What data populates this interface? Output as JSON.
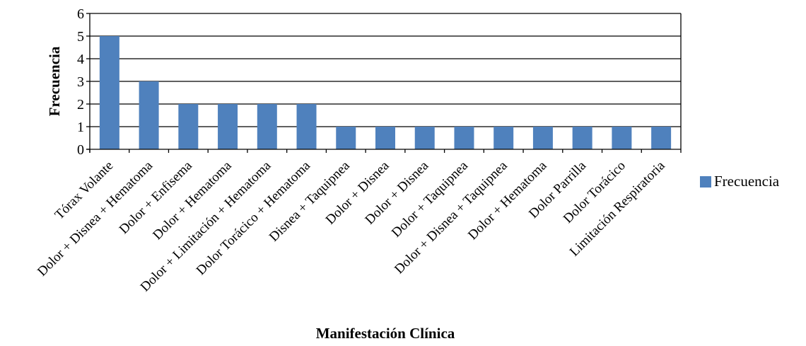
{
  "chart_data": {
    "type": "bar",
    "categories": [
      "Tórax Volante",
      "Dolor + Disnea + Hematoma",
      "Dolor + Enfisema",
      "Dolor + Hematoma",
      "Dolor + Limitación + Hematoma",
      "Dolor Torácico + Hematoma",
      "Disnea + Taquipnea",
      "Dolor + Disnea",
      "Dolor + Disnea",
      "Dolor + Taquipnea",
      "Dolor + Disnea + Taquipnea",
      "Dolor + Hematoma",
      "Dolor Parrilla",
      "Dolor Torácico",
      "Limitación Respiratoria"
    ],
    "series": [
      {
        "name": "Frecuencia",
        "values": [
          5,
          3,
          2,
          2,
          2,
          2,
          1,
          1,
          1,
          1,
          1,
          1,
          1,
          1,
          1
        ]
      }
    ],
    "xlabel": "Manifestación Clínica",
    "ylabel": "Frecuencia",
    "ylim": [
      0,
      6
    ],
    "yticks": [
      "0",
      "1",
      "2",
      "3",
      "4",
      "5",
      "6"
    ],
    "grid": true,
    "legend": "right",
    "bar_color": "#4f81bd"
  }
}
